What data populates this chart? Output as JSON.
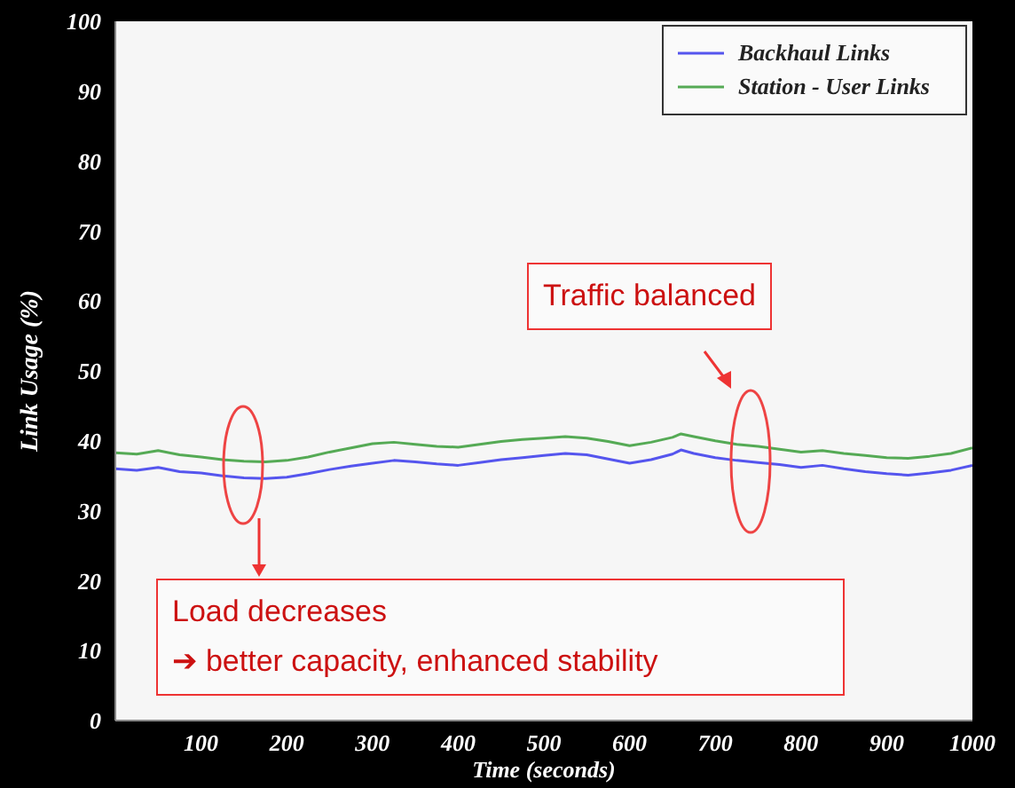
{
  "chart_data": {
    "type": "line",
    "xlabel": "Time (seconds)",
    "ylabel": "Link Usage (%)",
    "xlim": [
      0,
      1000
    ],
    "ylim": [
      0,
      100
    ],
    "xticks": [
      100,
      200,
      300,
      400,
      500,
      600,
      700,
      800,
      900,
      1000
    ],
    "yticks": [
      0,
      10,
      20,
      30,
      40,
      50,
      60,
      70,
      80,
      90,
      100
    ],
    "x": [
      0,
      25,
      50,
      75,
      100,
      125,
      150,
      175,
      200,
      225,
      250,
      275,
      300,
      325,
      350,
      375,
      400,
      425,
      450,
      475,
      500,
      525,
      550,
      575,
      600,
      625,
      650,
      660,
      675,
      700,
      725,
      750,
      775,
      800,
      825,
      850,
      875,
      900,
      925,
      950,
      975,
      1000
    ],
    "series": [
      {
        "name": "Backhaul Links",
        "color": "#5555ee",
        "values": [
          36.0,
          35.8,
          36.2,
          35.6,
          35.4,
          35.0,
          34.7,
          34.6,
          34.8,
          35.3,
          35.9,
          36.4,
          36.8,
          37.2,
          37.0,
          36.7,
          36.5,
          36.9,
          37.3,
          37.6,
          37.9,
          38.2,
          38.0,
          37.4,
          36.8,
          37.3,
          38.1,
          38.7,
          38.2,
          37.6,
          37.2,
          36.9,
          36.6,
          36.2,
          36.5,
          36.0,
          35.6,
          35.3,
          35.1,
          35.4,
          35.8,
          36.5
        ]
      },
      {
        "name": "Station - User Links",
        "color": "#55aa55",
        "values": [
          38.3,
          38.1,
          38.6,
          38.0,
          37.7,
          37.3,
          37.1,
          37.0,
          37.2,
          37.7,
          38.4,
          39.0,
          39.6,
          39.8,
          39.5,
          39.2,
          39.1,
          39.5,
          39.9,
          40.2,
          40.4,
          40.6,
          40.4,
          39.9,
          39.3,
          39.8,
          40.5,
          41.0,
          40.6,
          40.0,
          39.5,
          39.2,
          38.8,
          38.4,
          38.6,
          38.2,
          37.9,
          37.6,
          37.5,
          37.8,
          38.2,
          39.0
        ]
      }
    ],
    "grid": false,
    "legend": "top right",
    "marker": "none",
    "line_style": "solid",
    "annotations": [
      "Traffic balanced",
      "Load decreases\n➔ better capacity, enhanced stability"
    ]
  }
}
